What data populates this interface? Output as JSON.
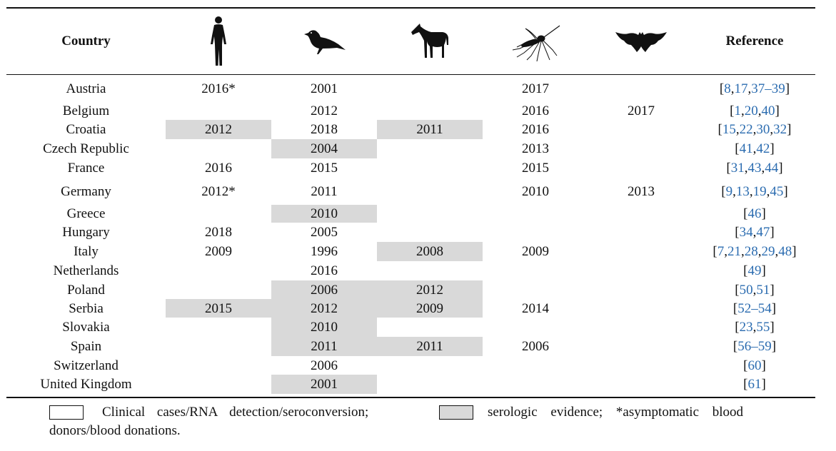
{
  "header": {
    "country": "Country",
    "reference": "Reference",
    "host_icons": [
      "human-icon",
      "bird-icon",
      "horse-icon",
      "mosquito-icon",
      "bat-icon"
    ]
  },
  "colors": {
    "serologic": "#d9d9d9",
    "link": "#2b6cb0",
    "border": "#111111"
  },
  "rows": [
    {
      "country": "Austria",
      "cells": [
        {
          "v": "2016*",
          "s": false
        },
        {
          "v": "2001",
          "s": false
        },
        {
          "v": "",
          "s": false
        },
        {
          "v": "2017",
          "s": false
        },
        {
          "v": "",
          "s": false
        }
      ],
      "ref": [
        "8",
        "17",
        "37–39"
      ]
    },
    {
      "country": "Belgium",
      "cells": [
        {
          "v": "",
          "s": false
        },
        {
          "v": "2012",
          "s": false
        },
        {
          "v": "",
          "s": false
        },
        {
          "v": "2016",
          "s": false
        },
        {
          "v": "2017",
          "s": false
        }
      ],
      "ref": [
        "1",
        "20",
        "40"
      ]
    },
    {
      "country": "Croatia",
      "cells": [
        {
          "v": "2012",
          "s": true
        },
        {
          "v": "2018",
          "s": false
        },
        {
          "v": "2011",
          "s": true
        },
        {
          "v": "2016",
          "s": false
        },
        {
          "v": "",
          "s": false
        }
      ],
      "ref": [
        "15",
        "22",
        "30",
        "32"
      ]
    },
    {
      "country": "Czech Republic",
      "cells": [
        {
          "v": "",
          "s": false
        },
        {
          "v": "2004",
          "s": true
        },
        {
          "v": "",
          "s": false
        },
        {
          "v": "2013",
          "s": false
        },
        {
          "v": "",
          "s": false
        }
      ],
      "ref": [
        "41",
        "42"
      ]
    },
    {
      "country": "France",
      "cells": [
        {
          "v": "2016",
          "s": false
        },
        {
          "v": "2015",
          "s": false
        },
        {
          "v": "",
          "s": false
        },
        {
          "v": "2015",
          "s": false
        },
        {
          "v": "",
          "s": false
        }
      ],
      "ref": [
        "31",
        "43",
        "44"
      ]
    },
    {
      "country": "Germany",
      "cells": [
        {
          "v": "2012*",
          "s": false
        },
        {
          "v": "2011",
          "s": false
        },
        {
          "v": "",
          "s": false
        },
        {
          "v": "2010",
          "s": false
        },
        {
          "v": "2013",
          "s": false
        }
      ],
      "ref": [
        "9",
        "13",
        "19",
        "45"
      ]
    },
    {
      "country": "Greece",
      "cells": [
        {
          "v": "",
          "s": false
        },
        {
          "v": "2010",
          "s": true
        },
        {
          "v": "",
          "s": false
        },
        {
          "v": "",
          "s": false
        },
        {
          "v": "",
          "s": false
        }
      ],
      "ref": [
        "46"
      ]
    },
    {
      "country": "Hungary",
      "cells": [
        {
          "v": "2018",
          "s": false
        },
        {
          "v": "2005",
          "s": false
        },
        {
          "v": "",
          "s": false
        },
        {
          "v": "",
          "s": false
        },
        {
          "v": "",
          "s": false
        }
      ],
      "ref": [
        "34",
        "47"
      ]
    },
    {
      "country": "Italy",
      "cells": [
        {
          "v": "2009",
          "s": false
        },
        {
          "v": "1996",
          "s": false
        },
        {
          "v": "2008",
          "s": true
        },
        {
          "v": "2009",
          "s": false
        },
        {
          "v": "",
          "s": false
        }
      ],
      "ref": [
        "7",
        "21",
        "28",
        "29",
        "48"
      ]
    },
    {
      "country": "Netherlands",
      "cells": [
        {
          "v": "",
          "s": false
        },
        {
          "v": "2016",
          "s": false
        },
        {
          "v": "",
          "s": false
        },
        {
          "v": "",
          "s": false
        },
        {
          "v": "",
          "s": false
        }
      ],
      "ref": [
        "49"
      ]
    },
    {
      "country": "Poland",
      "cells": [
        {
          "v": "",
          "s": false
        },
        {
          "v": "2006",
          "s": true
        },
        {
          "v": "2012",
          "s": true
        },
        {
          "v": "",
          "s": false
        },
        {
          "v": "",
          "s": false
        }
      ],
      "ref": [
        "50",
        "51"
      ]
    },
    {
      "country": "Serbia",
      "cells": [
        {
          "v": "2015",
          "s": true
        },
        {
          "v": "2012",
          "s": true
        },
        {
          "v": "2009",
          "s": true
        },
        {
          "v": "2014",
          "s": false
        },
        {
          "v": "",
          "s": false
        }
      ],
      "ref": [
        "52–54"
      ]
    },
    {
      "country": "Slovakia",
      "cells": [
        {
          "v": "",
          "s": false
        },
        {
          "v": "2010",
          "s": true
        },
        {
          "v": "",
          "s": false
        },
        {
          "v": "",
          "s": false
        },
        {
          "v": "",
          "s": false
        }
      ],
      "ref": [
        "23",
        "55"
      ]
    },
    {
      "country": "Spain",
      "cells": [
        {
          "v": "",
          "s": false
        },
        {
          "v": "2011",
          "s": true
        },
        {
          "v": "2011",
          "s": true
        },
        {
          "v": "2006",
          "s": false
        },
        {
          "v": "",
          "s": false
        }
      ],
      "ref": [
        "56–59"
      ]
    },
    {
      "country": "Switzerland",
      "cells": [
        {
          "v": "",
          "s": false
        },
        {
          "v": "2006",
          "s": false
        },
        {
          "v": "",
          "s": false
        },
        {
          "v": "",
          "s": false
        },
        {
          "v": "",
          "s": false
        }
      ],
      "ref": [
        "60"
      ]
    },
    {
      "country": "United Kingdom",
      "cells": [
        {
          "v": "",
          "s": false
        },
        {
          "v": "2001",
          "s": true
        },
        {
          "v": "",
          "s": false
        },
        {
          "v": "",
          "s": false
        },
        {
          "v": "",
          "s": false
        }
      ],
      "ref": [
        "61"
      ]
    }
  ],
  "legend": {
    "white_text": "Clinical cases/RNA detection/seroconversion;",
    "grey_text": "serologic evidence; *asymptomatic blood",
    "line2": "donors/blood donations."
  }
}
